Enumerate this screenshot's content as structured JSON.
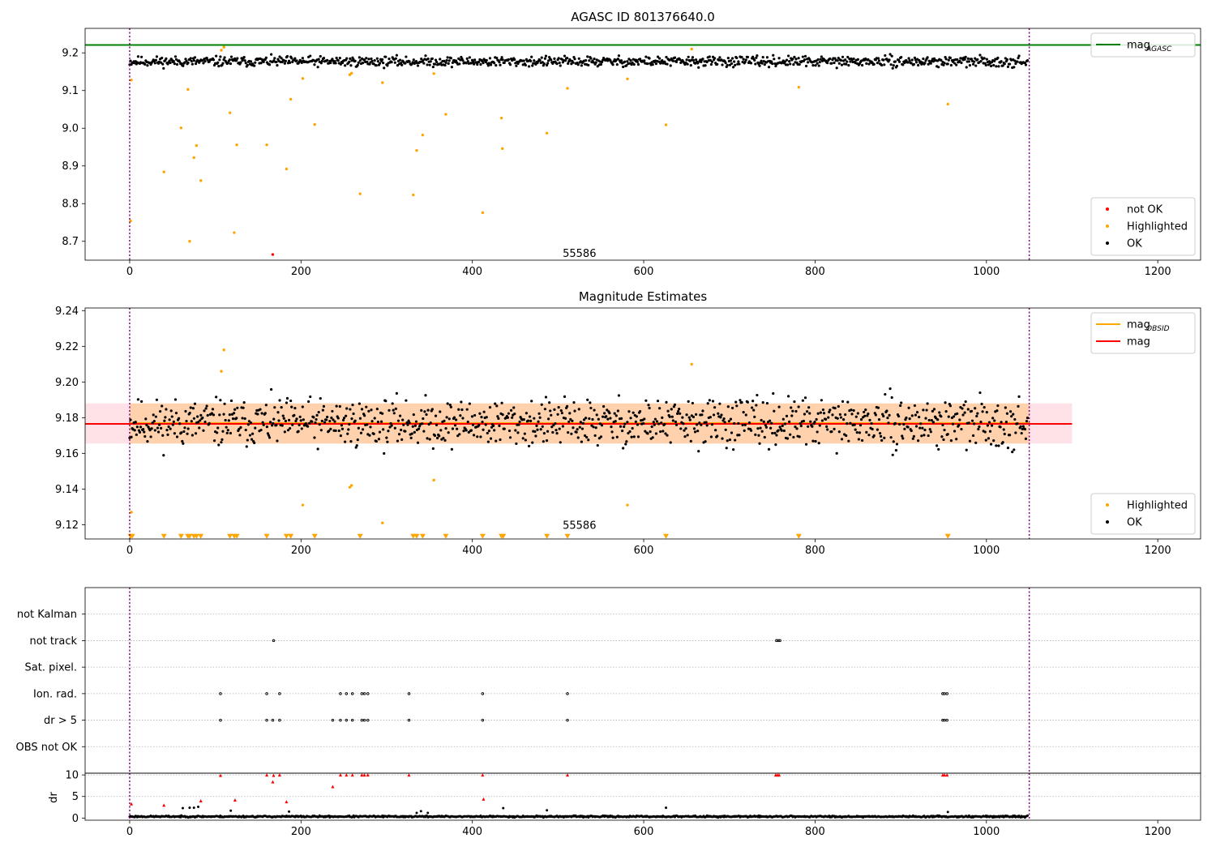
{
  "chart_data": [
    {
      "type": "scatter",
      "title": "AGASC ID 801376640.0",
      "xlim": [
        -52,
        1250
      ],
      "ylim": [
        8.65,
        9.265
      ],
      "xticks": [
        0,
        200,
        400,
        600,
        800,
        1000,
        1200
      ],
      "yticks": [
        8.7,
        8.8,
        8.9,
        9.0,
        9.1,
        9.2
      ],
      "ytick_labels": [
        "8.7",
        "8.8",
        "8.9",
        "9.0",
        "9.1",
        "9.2"
      ],
      "vlines": [
        0,
        1050
      ],
      "hline": {
        "name": "mag",
        "subscript": "AGASC",
        "y": 9.221,
        "color": "#008000"
      },
      "annotation": {
        "text": "55586",
        "x": 525,
        "y": 8.667
      },
      "legends": [
        {
          "position": "top-right",
          "entries": [
            {
              "name": "mag",
              "subscript": "AGASC",
              "kind": "line",
              "color": "#008000"
            }
          ]
        },
        {
          "position": "bottom-right",
          "entries": [
            {
              "name": "not OK",
              "kind": "marker",
              "color": "#ff0000"
            },
            {
              "name": "Highlighted",
              "kind": "marker",
              "color": "#ffa500"
            },
            {
              "name": "OK",
              "kind": "marker",
              "color": "#000000"
            }
          ]
        }
      ],
      "series": [
        {
          "name": "OK",
          "color": "#000000",
          "generated": {
            "x_range": [
              0,
              1048
            ],
            "n": 1060,
            "base": 9.177,
            "noise": 0.011,
            "seed": 11
          }
        },
        {
          "name": "Highlighted",
          "color": "#ffa500",
          "points": [
            [
              2,
              9.128
            ],
            [
              1,
              8.754
            ],
            [
              40,
              8.884
            ],
            [
              60,
              9.001
            ],
            [
              68,
              9.103
            ],
            [
              70,
              8.7
            ],
            [
              75,
              8.922
            ],
            [
              78,
              8.954
            ],
            [
              83,
              8.861
            ],
            [
              107,
              9.207
            ],
            [
              110,
              9.215
            ],
            [
              117,
              9.041
            ],
            [
              122,
              8.723
            ],
            [
              125,
              8.956
            ],
            [
              160,
              8.956
            ],
            [
              183,
              8.892
            ],
            [
              188,
              9.077
            ],
            [
              202,
              9.132
            ],
            [
              216,
              9.01
            ],
            [
              257,
              9.142
            ],
            [
              259,
              9.146
            ],
            [
              269,
              8.826
            ],
            [
              295,
              9.121
            ],
            [
              331,
              8.823
            ],
            [
              335,
              8.941
            ],
            [
              342,
              8.982
            ],
            [
              355,
              9.145
            ],
            [
              369,
              9.037
            ],
            [
              412,
              8.776
            ],
            [
              434,
              9.027
            ],
            [
              435,
              8.946
            ],
            [
              487,
              8.987
            ],
            [
              511,
              9.106
            ],
            [
              581,
              9.131
            ],
            [
              626,
              9.009
            ],
            [
              656,
              9.21
            ],
            [
              781,
              9.109
            ],
            [
              955,
              9.064
            ]
          ]
        },
        {
          "name": "not OK",
          "color": "#ff0000",
          "points": [
            [
              167,
              8.665
            ]
          ]
        }
      ]
    },
    {
      "type": "scatter",
      "title": "Magnitude Estimates",
      "xlim": [
        -52,
        1250
      ],
      "ylim": [
        9.112,
        9.2415
      ],
      "xticks": [
        0,
        200,
        400,
        600,
        800,
        1000,
        1200
      ],
      "yticks": [
        9.12,
        9.14,
        9.16,
        9.18,
        9.2,
        9.22,
        9.24
      ],
      "ytick_labels": [
        "9.12",
        "9.14",
        "9.16",
        "9.18",
        "9.20",
        "9.22",
        "9.24"
      ],
      "vlines": [
        0,
        1050
      ],
      "annotation": {
        "text": "55586",
        "x": 525,
        "y": 9.1195
      },
      "bands": [
        {
          "x": [
            -52,
            1100
          ],
          "y": [
            9.1655,
            9.188
          ],
          "color": "#ff8da1",
          "opacity": 0.25
        },
        {
          "x": [
            0,
            1050
          ],
          "y": [
            9.1655,
            9.188
          ],
          "color": "#ffa500",
          "opacity": 0.25
        }
      ],
      "lines": [
        {
          "name": "mag",
          "subscript": "OBSID",
          "x": [
            0,
            1050
          ],
          "y": 9.177,
          "color": "#ffa500"
        },
        {
          "name": "mag",
          "x": [
            -52,
            1100
          ],
          "y": 9.1765,
          "color": "#ff0000"
        }
      ],
      "legends": [
        {
          "position": "top-right",
          "entries": [
            {
              "name": "mag",
              "subscript": "OBSID",
              "kind": "line",
              "color": "#ffa500"
            },
            {
              "name": "mag",
              "kind": "line",
              "color": "#ff0000"
            }
          ]
        },
        {
          "position": "bottom-right",
          "entries": [
            {
              "name": "Highlighted",
              "kind": "marker",
              "color": "#ffa500"
            },
            {
              "name": "OK",
              "kind": "marker",
              "color": "#000000"
            }
          ]
        }
      ],
      "series": [
        {
          "name": "OK",
          "color": "#000000",
          "generated": {
            "x_range": [
              0,
              1048
            ],
            "n": 1060,
            "base": 9.177,
            "noise": 0.011,
            "seed": 11
          }
        },
        {
          "name": "Highlighted",
          "color": "#ffa500",
          "points": [
            [
              2,
              9.127
            ],
            [
              107,
              9.206
            ],
            [
              110,
              9.218
            ],
            [
              202,
              9.131
            ],
            [
              257,
              9.141
            ],
            [
              259,
              9.142
            ],
            [
              295,
              9.121
            ],
            [
              355,
              9.145
            ],
            [
              581,
              9.131
            ],
            [
              656,
              9.21
            ]
          ]
        },
        {
          "name": "Highlighted (out of range)",
          "color": "#ffa500",
          "marker": "triangle-down",
          "y": 9.1135,
          "x": [
            1,
            3,
            40,
            60,
            68,
            70,
            75,
            78,
            83,
            117,
            122,
            125,
            160,
            183,
            188,
            216,
            269,
            331,
            335,
            342,
            369,
            412,
            434,
            436,
            487,
            511,
            626,
            781,
            955
          ]
        }
      ]
    },
    {
      "type": "scatter",
      "title": "",
      "xlim": [
        -52,
        1250
      ],
      "rows": [
        "not Kalman",
        "not track",
        "Sat. pixel.",
        "Ion. rad.",
        "dr > 5",
        "OBS not OK"
      ],
      "vlines": [
        0,
        1050
      ],
      "flags": {
        "not track": [
          168,
          755,
          757,
          759
        ],
        "Ion. rad.": [
          106,
          160,
          175,
          246,
          253,
          260,
          271,
          274,
          278,
          326,
          412,
          511,
          949,
          951,
          954
        ],
        "dr > 5": [
          106,
          160,
          167,
          175,
          237,
          246,
          253,
          260,
          271,
          274,
          278,
          326,
          412,
          511,
          949,
          951,
          954
        ]
      },
      "marker_color": "#000000"
    },
    {
      "type": "scatter",
      "title": "",
      "ylabel": "dr",
      "xlim": [
        -52,
        1250
      ],
      "ylim": [
        -0.5,
        10.4
      ],
      "xticks": [
        0,
        200,
        400,
        600,
        800,
        1000,
        1200
      ],
      "yticks": [
        0,
        5,
        10
      ],
      "ytick_labels": [
        "0",
        "5",
        "10"
      ],
      "vlines": [
        0,
        1050
      ],
      "series": [
        {
          "name": "OK",
          "color": "#000000",
          "generated": {
            "x_range": [
              0,
              1048
            ],
            "n": 1060,
            "base": 0.35,
            "noise": 0.15,
            "seed": 23
          }
        },
        {
          "name": "OK",
          "color": "#000000",
          "points": [
            [
              62,
              2.3
            ],
            [
              70,
              2.4
            ],
            [
              75,
              2.4
            ],
            [
              80,
              2.6
            ],
            [
              118,
              1.7
            ],
            [
              186,
              1.5
            ],
            [
              335,
              1.2
            ],
            [
              340,
              1.6
            ],
            [
              348,
              1.2
            ],
            [
              436,
              2.3
            ],
            [
              487,
              1.8
            ],
            [
              626,
              2.4
            ],
            [
              955,
              1.4
            ]
          ]
        },
        {
          "name": "not OK",
          "color": "#ff0000",
          "points": [
            [
              2,
              3.3
            ],
            [
              40,
              3.0
            ],
            [
              83,
              4.0
            ],
            [
              106,
              9.9
            ],
            [
              123,
              4.2
            ],
            [
              160,
              10
            ],
            [
              167,
              8.4
            ],
            [
              168,
              9.9
            ],
            [
              175,
              10
            ],
            [
              183,
              3.8
            ],
            [
              237,
              7.3
            ],
            [
              246,
              10
            ],
            [
              253,
              10
            ],
            [
              260,
              10
            ],
            [
              271,
              10
            ],
            [
              274,
              10
            ],
            [
              278,
              10
            ],
            [
              326,
              10
            ],
            [
              412,
              10
            ],
            [
              413,
              4.4
            ],
            [
              511,
              10
            ],
            [
              754,
              10
            ],
            [
              756,
              10
            ],
            [
              758,
              10
            ],
            [
              949,
              10
            ],
            [
              951,
              10
            ],
            [
              954,
              10
            ]
          ]
        }
      ]
    }
  ]
}
